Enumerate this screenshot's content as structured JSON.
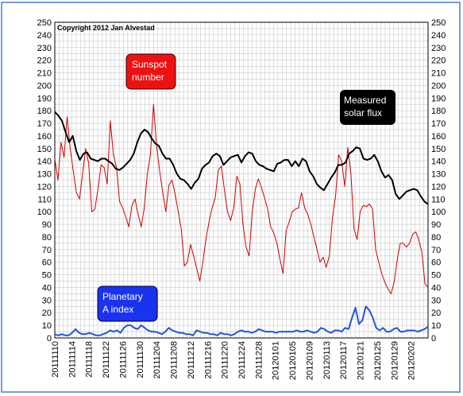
{
  "chart_data": {
    "type": "line",
    "copyright": "Copyright 2012 Jan Alvestad",
    "ylim": [
      0,
      250
    ],
    "y_ticks": [
      0,
      10,
      20,
      30,
      40,
      50,
      60,
      70,
      80,
      90,
      100,
      110,
      120,
      130,
      140,
      150,
      160,
      170,
      180,
      190,
      200,
      210,
      220,
      230,
      240,
      250
    ],
    "x_tick_labels": [
      "20111110",
      "20111114",
      "20111118",
      "20111122",
      "20111126",
      "20111130",
      "20111204",
      "20111208",
      "20111212",
      "20111216",
      "20111220",
      "20111224",
      "20111228",
      "20120101",
      "20120105",
      "20120109",
      "20120113",
      "20120117",
      "20120121",
      "20120125",
      "20120129",
      "20120202"
    ],
    "grid": true,
    "series": [
      {
        "name": "Measured solar flux",
        "label": "Measured\nsolar flux",
        "color": "#000000",
        "values": [
          179,
          176,
          172,
          163,
          155,
          160,
          148,
          141,
          146,
          147,
          142,
          141,
          140,
          142,
          142,
          140,
          138,
          134,
          133,
          135,
          138,
          141,
          146,
          155,
          162,
          165,
          163,
          158,
          154,
          152,
          146,
          142,
          142,
          137,
          130,
          126,
          125,
          122,
          118,
          123,
          126,
          134,
          137,
          139,
          144,
          146,
          144,
          137,
          140,
          143,
          144,
          145,
          139,
          144,
          147,
          146,
          140,
          137,
          136,
          134,
          133,
          132,
          138,
          139,
          141,
          141,
          136,
          140,
          136,
          142,
          140,
          132,
          128,
          122,
          119,
          117,
          122,
          127,
          131,
          137,
          137,
          139,
          146,
          148,
          151,
          150,
          142,
          141,
          142,
          145,
          140,
          132,
          127,
          129,
          125,
          114,
          110,
          113,
          116,
          117,
          118,
          117,
          112,
          108,
          106
        ]
      },
      {
        "name": "Sunspot number",
        "label": "Sunspot\nnumber",
        "color": "#cc0000",
        "values": [
          142,
          125,
          155,
          143,
          175,
          150,
          132,
          115,
          110,
          130,
          150,
          138,
          100,
          102,
          118,
          137,
          135,
          122,
          172,
          145,
          135,
          108,
          103,
          96,
          88,
          105,
          110,
          98,
          88,
          103,
          130,
          145,
          185,
          152,
          132,
          115,
          100,
          121,
          125,
          114,
          100,
          86,
          57,
          60,
          74,
          65,
          55,
          45,
          60,
          78,
          92,
          103,
          111,
          133,
          136,
          117,
          100,
          93,
          103,
          128,
          122,
          90,
          72,
          65,
          100,
          118,
          126,
          119,
          111,
          102,
          88,
          83,
          75,
          62,
          51,
          85,
          92,
          100,
          102,
          103,
          115,
          103,
          98,
          90,
          80,
          70,
          60,
          64,
          56,
          65,
          95,
          112,
          145,
          140,
          120,
          151,
          130,
          86,
          78,
          100,
          105,
          104,
          106,
          102,
          70,
          60,
          51,
          44,
          39,
          35,
          44,
          62,
          75,
          75,
          72,
          75,
          82,
          84,
          78,
          68,
          43,
          40
        ]
      },
      {
        "name": "Planetary A index",
        "label": "Planetary\nA index",
        "color": "#2255dd",
        "values": [
          3,
          2,
          3,
          2,
          2,
          4,
          7,
          4,
          3,
          3,
          4,
          3,
          2,
          2,
          3,
          4,
          6,
          5,
          6,
          4,
          8,
          10,
          10,
          8,
          7,
          10,
          8,
          6,
          5,
          5,
          4,
          3,
          5,
          8,
          6,
          5,
          4,
          4,
          3,
          3,
          2,
          6,
          5,
          4,
          4,
          3,
          3,
          2,
          4,
          3,
          3,
          2,
          3,
          5,
          6,
          5,
          5,
          4,
          5,
          7,
          6,
          5,
          5,
          5,
          4,
          5,
          5,
          5,
          5,
          5,
          6,
          5,
          5,
          6,
          5,
          4,
          5,
          8,
          7,
          5,
          4,
          6,
          6,
          5,
          8,
          7,
          16,
          24,
          11,
          14,
          25,
          22,
          16,
          8,
          6,
          8,
          5,
          5,
          7,
          8,
          5,
          5,
          6,
          6,
          6,
          5,
          6,
          7,
          9
        ]
      }
    ]
  }
}
